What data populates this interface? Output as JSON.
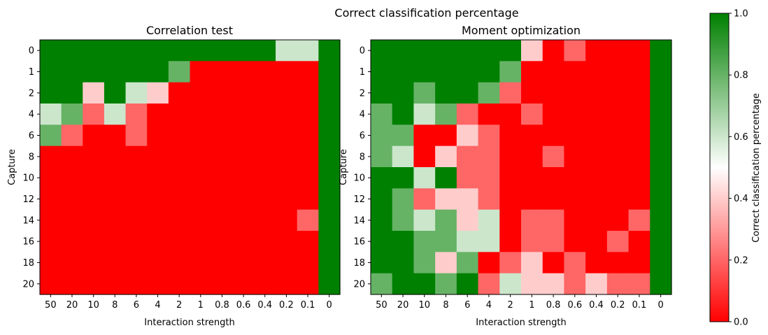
{
  "suptitle": "Correct classification percentage",
  "colorbar": {
    "label": "Correct classification percentage",
    "min": 0.0,
    "max": 1.0,
    "ticks": [
      "0.0",
      "0.2",
      "0.4",
      "0.6",
      "0.8",
      "1.0"
    ],
    "colormap": [
      {
        "value": 0.0,
        "color": "#ff0000"
      },
      {
        "value": 0.5,
        "color": "#ffffff"
      },
      {
        "value": 1.0,
        "color": "#008000"
      }
    ]
  },
  "chart_data": [
    {
      "type": "heatmap",
      "title": "Correlation test",
      "xlabel": "Interaction strength",
      "ylabel": "Capture",
      "x_categories": [
        "50",
        "20",
        "10",
        "8",
        "6",
        "4",
        "2",
        "1",
        "0.8",
        "0.6",
        "0.4",
        "0.2",
        "0.1",
        "0"
      ],
      "y_categories": [
        "0",
        "1",
        "2",
        "4",
        "6",
        "8",
        "10",
        "12",
        "14",
        "16",
        "18",
        "20"
      ],
      "values": [
        [
          1.0,
          1.0,
          1.0,
          1.0,
          1.0,
          1.0,
          1.0,
          1.0,
          1.0,
          1.0,
          1.0,
          0.6,
          0.6,
          1.0
        ],
        [
          1.0,
          1.0,
          1.0,
          1.0,
          1.0,
          1.0,
          0.8,
          0.0,
          0.0,
          0.0,
          0.0,
          0.0,
          0.0,
          1.0
        ],
        [
          1.0,
          1.0,
          0.4,
          1.0,
          0.6,
          0.4,
          0.0,
          0.0,
          0.0,
          0.0,
          0.0,
          0.0,
          0.0,
          1.0
        ],
        [
          0.6,
          0.8,
          0.2,
          0.6,
          0.2,
          0.0,
          0.0,
          0.0,
          0.0,
          0.0,
          0.0,
          0.0,
          0.0,
          1.0
        ],
        [
          0.8,
          0.2,
          0.0,
          0.0,
          0.2,
          0.0,
          0.0,
          0.0,
          0.0,
          0.0,
          0.0,
          0.0,
          0.0,
          1.0
        ],
        [
          0.0,
          0.0,
          0.0,
          0.0,
          0.0,
          0.0,
          0.0,
          0.0,
          0.0,
          0.0,
          0.0,
          0.0,
          0.0,
          1.0
        ],
        [
          0.0,
          0.0,
          0.0,
          0.0,
          0.0,
          0.0,
          0.0,
          0.0,
          0.0,
          0.0,
          0.0,
          0.0,
          0.0,
          1.0
        ],
        [
          0.0,
          0.0,
          0.0,
          0.0,
          0.0,
          0.0,
          0.0,
          0.0,
          0.0,
          0.0,
          0.0,
          0.0,
          0.0,
          1.0
        ],
        [
          0.0,
          0.0,
          0.0,
          0.0,
          0.0,
          0.0,
          0.0,
          0.0,
          0.0,
          0.0,
          0.0,
          0.0,
          0.2,
          1.0
        ],
        [
          0.0,
          0.0,
          0.0,
          0.0,
          0.0,
          0.0,
          0.0,
          0.0,
          0.0,
          0.0,
          0.0,
          0.0,
          0.0,
          1.0
        ],
        [
          0.0,
          0.0,
          0.0,
          0.0,
          0.0,
          0.0,
          0.0,
          0.0,
          0.0,
          0.0,
          0.0,
          0.0,
          0.0,
          1.0
        ],
        [
          0.0,
          0.0,
          0.0,
          0.0,
          0.0,
          0.0,
          0.0,
          0.0,
          0.0,
          0.0,
          0.0,
          0.0,
          0.0,
          1.0
        ]
      ]
    },
    {
      "type": "heatmap",
      "title": "Moment optimization",
      "xlabel": "Interaction strength",
      "ylabel": "Capture",
      "x_categories": [
        "50",
        "20",
        "10",
        "8",
        "6",
        "4",
        "2",
        "1",
        "0.8",
        "0.6",
        "0.4",
        "0.2",
        "0.1",
        "0"
      ],
      "y_categories": [
        "0",
        "1",
        "2",
        "4",
        "6",
        "8",
        "10",
        "12",
        "14",
        "16",
        "18",
        "20"
      ],
      "values": [
        [
          1.0,
          1.0,
          1.0,
          1.0,
          1.0,
          1.0,
          1.0,
          0.4,
          0.0,
          0.2,
          0.0,
          0.0,
          0.0,
          1.0
        ],
        [
          1.0,
          1.0,
          1.0,
          1.0,
          1.0,
          1.0,
          0.8,
          0.0,
          0.0,
          0.0,
          0.0,
          0.0,
          0.0,
          1.0
        ],
        [
          1.0,
          1.0,
          0.8,
          1.0,
          1.0,
          0.8,
          0.2,
          0.0,
          0.0,
          0.0,
          0.0,
          0.0,
          0.0,
          1.0
        ],
        [
          0.8,
          1.0,
          0.6,
          0.8,
          0.2,
          0.0,
          0.0,
          0.2,
          0.0,
          0.0,
          0.0,
          0.0,
          0.0,
          1.0
        ],
        [
          0.8,
          0.8,
          0.0,
          0.0,
          0.4,
          0.2,
          0.0,
          0.0,
          0.0,
          0.0,
          0.0,
          0.0,
          0.0,
          1.0
        ],
        [
          0.8,
          0.6,
          0.0,
          0.4,
          0.2,
          0.2,
          0.0,
          0.0,
          0.2,
          0.0,
          0.0,
          0.0,
          0.0,
          1.0
        ],
        [
          1.0,
          1.0,
          0.6,
          1.0,
          0.2,
          0.2,
          0.0,
          0.0,
          0.0,
          0.0,
          0.0,
          0.0,
          0.0,
          1.0
        ],
        [
          1.0,
          0.8,
          0.2,
          0.4,
          0.4,
          0.2,
          0.0,
          0.0,
          0.0,
          0.0,
          0.0,
          0.0,
          0.0,
          1.0
        ],
        [
          1.0,
          0.8,
          0.6,
          0.8,
          0.4,
          0.6,
          0.0,
          0.2,
          0.2,
          0.0,
          0.0,
          0.0,
          0.2,
          1.0
        ],
        [
          1.0,
          1.0,
          0.8,
          0.8,
          0.6,
          0.6,
          0.0,
          0.2,
          0.2,
          0.0,
          0.0,
          0.2,
          0.0,
          1.0
        ],
        [
          1.0,
          1.0,
          0.8,
          0.4,
          0.8,
          0.0,
          0.2,
          0.4,
          0.0,
          0.2,
          0.0,
          0.0,
          0.0,
          1.0
        ],
        [
          0.8,
          1.0,
          1.0,
          0.8,
          1.0,
          0.2,
          0.6,
          0.4,
          0.4,
          0.2,
          0.4,
          0.2,
          0.2,
          1.0
        ]
      ]
    }
  ]
}
